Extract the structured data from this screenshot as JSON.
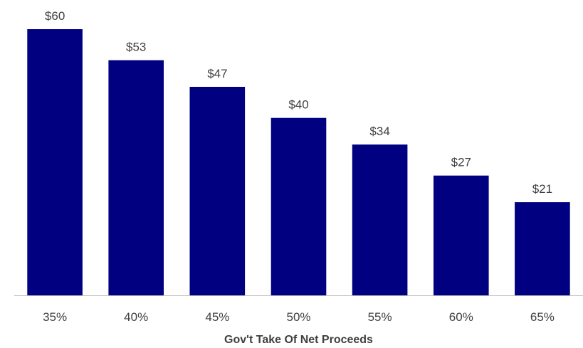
{
  "chart_data": {
    "type": "bar",
    "title": "",
    "xlabel": "Gov't Take Of Net Proceeds",
    "ylabel": "",
    "categories": [
      "35%",
      "40%",
      "45%",
      "50%",
      "55%",
      "60%",
      "65%"
    ],
    "values": [
      60,
      53,
      47,
      40,
      34,
      27,
      21
    ],
    "value_labels": [
      "$60",
      "$53",
      "$47",
      "$40",
      "$34",
      "$27",
      "$21"
    ],
    "ylim": [
      0,
      60
    ],
    "grid": false,
    "legend": "none",
    "bar_color": "#000080",
    "axis_color": "#bfbfbf",
    "text_color": "#404040"
  }
}
